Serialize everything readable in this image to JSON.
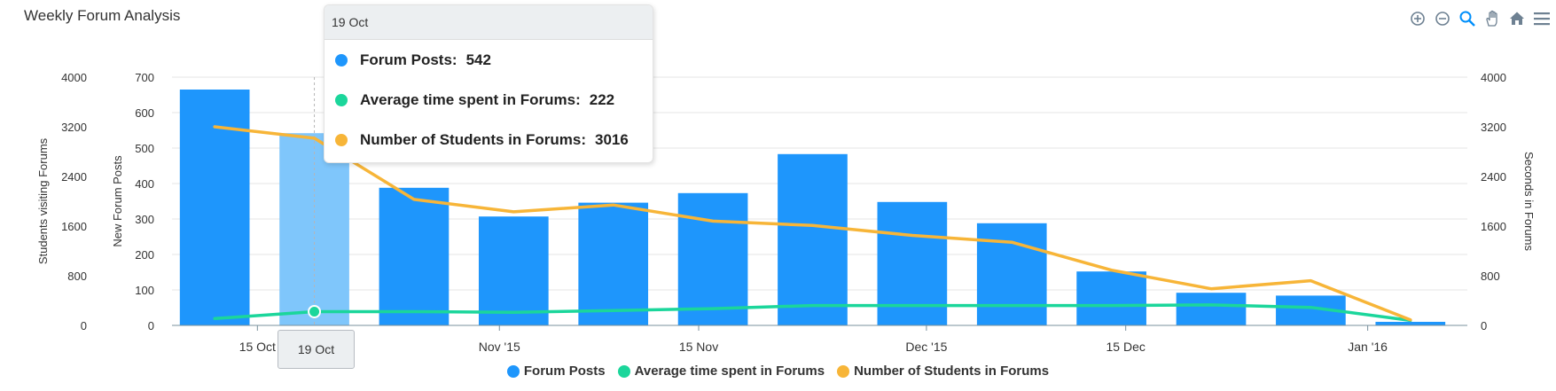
{
  "title": "Weekly Forum Analysis",
  "colors": {
    "posts": "#1E96FC",
    "posts_hover": "#7FC6FB",
    "time": "#1BD69B",
    "students": "#F7B538",
    "grid": "#e6e6e6"
  },
  "toolbar": [
    {
      "name": "zoom-in-icon"
    },
    {
      "name": "zoom-out-icon"
    },
    {
      "name": "selection-zoom-icon"
    },
    {
      "name": "pan-icon"
    },
    {
      "name": "reset-home-icon"
    },
    {
      "name": "menu-icon"
    }
  ],
  "tooltip": {
    "header": "19 Oct",
    "rows": [
      {
        "label": "Forum Posts:",
        "value": "542",
        "color": "#1E96FC"
      },
      {
        "label": "Average time spent in Forums:",
        "value": "222",
        "color": "#1BD69B"
      },
      {
        "label": "Number of Students in Forums:",
        "value": "3016",
        "color": "#F7B538"
      }
    ]
  },
  "crosshair_label": "19 Oct",
  "chart_data": {
    "type": "bar",
    "title": "Weekly Forum Analysis",
    "x": [
      "2015-10-12",
      "2015-10-19",
      "2015-10-26",
      "2015-11-02",
      "2015-11-09",
      "2015-11-16",
      "2015-11-23",
      "2015-11-30",
      "2015-12-07",
      "2015-12-14",
      "2015-12-21",
      "2015-12-28",
      "2016-01-04"
    ],
    "xticks": [
      {
        "date": "2015-10-15",
        "label": "15 Oct"
      },
      {
        "date": "2015-11-01",
        "label": "Nov '15"
      },
      {
        "date": "2015-11-15",
        "label": "15 Nov"
      },
      {
        "date": "2015-12-01",
        "label": "Dec '15"
      },
      {
        "date": "2015-12-15",
        "label": "15 Dec"
      },
      {
        "date": "2016-01-01",
        "label": "Jan '16"
      }
    ],
    "xlim": [
      "2015-10-09",
      "2016-01-08"
    ],
    "series": [
      {
        "name": "Forum Posts",
        "type": "bar",
        "axis": "posts",
        "values": [
          665,
          542,
          388,
          307,
          346,
          373,
          483,
          348,
          288,
          152,
          92,
          84,
          10
        ]
      },
      {
        "name": "Average time spent in Forums",
        "type": "line",
        "axis": "seconds",
        "values": [
          110,
          222,
          222,
          210,
          240,
          270,
          320,
          320,
          320,
          320,
          330,
          290,
          80
        ]
      },
      {
        "name": "Number of Students in Forums",
        "type": "line",
        "axis": "students",
        "values": [
          3200,
          3016,
          2030,
          1830,
          1940,
          1680,
          1610,
          1450,
          1340,
          890,
          590,
          720,
          90
        ]
      }
    ],
    "axes": {
      "students": {
        "label": "Students visiting Forums",
        "ticks": [
          "0",
          "800",
          "1600",
          "2400",
          "3200",
          "4000"
        ],
        "ylim": [
          0,
          4000
        ],
        "side": "left"
      },
      "posts": {
        "label": "New Forum Posts",
        "ticks": [
          "0",
          "100",
          "200",
          "300",
          "400",
          "500",
          "600",
          "700"
        ],
        "ylim": [
          0,
          700
        ],
        "side": "left"
      },
      "seconds": {
        "label": "Seconds in Forums",
        "ticks": [
          "0",
          "800",
          "1600",
          "2400",
          "3200",
          "4000"
        ],
        "ylim": [
          0,
          4000
        ],
        "side": "right"
      }
    },
    "highlight_index": 1,
    "grid": true,
    "legend_position": "bottom-center"
  }
}
